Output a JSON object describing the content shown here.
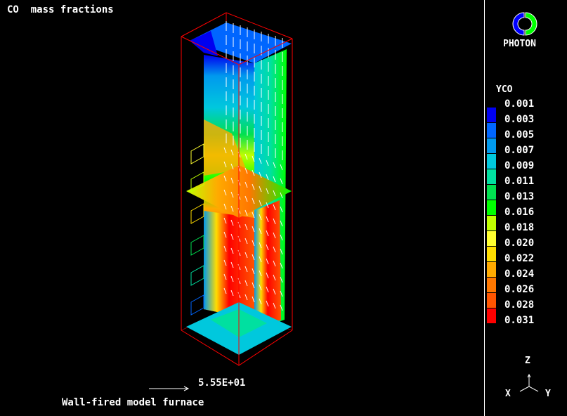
{
  "title": "CO  mass fractions",
  "caption": "Wall-fired model furnace",
  "vector_reference": {
    "value_label": "5.55E+01"
  },
  "logo": {
    "text": "PHOTON",
    "colors": [
      "#0000ff",
      "#00ff00"
    ]
  },
  "legend": {
    "variable": "YCO",
    "levels": [
      {
        "label": "0.001",
        "color": null
      },
      {
        "label": "0.003",
        "color": "#0000f0"
      },
      {
        "label": "0.005",
        "color": "#0066ff"
      },
      {
        "label": "0.007",
        "color": "#0099ee"
      },
      {
        "label": "0.009",
        "color": "#00c8dd"
      },
      {
        "label": "0.011",
        "color": "#00e0a0"
      },
      {
        "label": "0.013",
        "color": "#00e050"
      },
      {
        "label": "0.016",
        "color": "#00ff00"
      },
      {
        "label": "0.018",
        "color": "#c0ff00"
      },
      {
        "label": "0.020",
        "color": "#ffff30"
      },
      {
        "label": "0.022",
        "color": "#ffdd00"
      },
      {
        "label": "0.024",
        "color": "#ffaa00"
      },
      {
        "label": "0.026",
        "color": "#ff7700"
      },
      {
        "label": "0.028",
        "color": "#ff5500"
      },
      {
        "label": "0.031",
        "color": "#ff0000"
      }
    ]
  },
  "axes": {
    "z": "Z",
    "x": "X",
    "y": "Y"
  },
  "colors": {
    "background": "#000000",
    "bounding_box": "#ff0000",
    "vectors": "#ffffff"
  }
}
